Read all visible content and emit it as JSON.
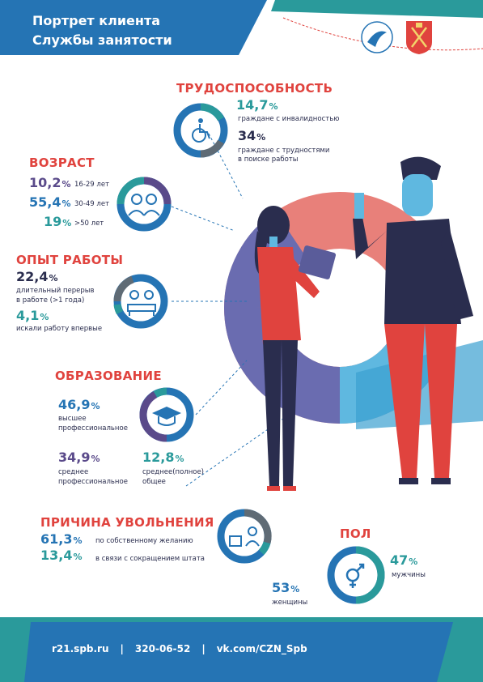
{
  "header": {
    "title_line1": "Портрет клиента",
    "title_line2": "Службы занятости"
  },
  "colors": {
    "blue": "#2574b4",
    "teal": "#2a9a9b",
    "red": "#e0433e",
    "navy": "#2a2d4e",
    "purple": "#5a4a8a",
    "gray": "#5f6b75"
  },
  "trud": {
    "title": "ТРУДОСПОСОБНОСТЬ",
    "items": [
      {
        "value": "14,7",
        "unit": "%",
        "label": "граждане с инвалидностью"
      },
      {
        "value": "34",
        "unit": "%",
        "label_line1": "граждане с трудностями",
        "label_line2": "в поиске работы"
      }
    ]
  },
  "vozrast": {
    "title": "ВОЗРАСТ",
    "items": [
      {
        "value": "10,2",
        "unit": "%",
        "label": "16-29 лет"
      },
      {
        "value": "55,4",
        "unit": "%",
        "label": "30-49 лет"
      },
      {
        "value": "19",
        "unit": "%",
        "label": ">50 лет"
      }
    ]
  },
  "opyt": {
    "title": "ОПЫТ РАБОТЫ",
    "items": [
      {
        "value": "22,4",
        "unit": "%",
        "label_line1": "длительный перерыв",
        "label_line2": "в работе (>1 года)"
      },
      {
        "value": "4,1",
        "unit": "%",
        "label": "искали работу впервые"
      }
    ]
  },
  "obraz": {
    "title": "ОБРАЗОВАНИЕ",
    "items": [
      {
        "value": "46,9",
        "unit": "%",
        "label_line1": "высшее",
        "label_line2": "профессиональное"
      },
      {
        "value": "34,9",
        "unit": "%",
        "label_line1": "среднее",
        "label_line2": "профессиональное"
      },
      {
        "value": "12,8",
        "unit": "%",
        "label_line1": "среднее(полное)",
        "label_line2": "общее"
      }
    ]
  },
  "prichina": {
    "title": "ПРИЧИНА УВОЛЬНЕНИЯ",
    "items": [
      {
        "value": "61,3",
        "unit": "%",
        "label": "по собственному желанию"
      },
      {
        "value": "13,4",
        "unit": "%",
        "label": "в связи с сокращением штата"
      }
    ]
  },
  "pol": {
    "title": "ПОЛ",
    "items": [
      {
        "value": "47",
        "unit": "%",
        "label": "мужчины"
      },
      {
        "value": "53",
        "unit": "%",
        "label": "женщины"
      }
    ]
  },
  "footer": {
    "site": "r21.spb.ru",
    "sep": "|",
    "phone": "320-06-52",
    "vk": "vk.com/CZN_Spb"
  },
  "icons": [
    "employment-service-logo",
    "spb-coat-of-arms-icon",
    "wheelchair-icon",
    "people-icon",
    "workers-icon",
    "graduation-cap-icon",
    "box-person-icon",
    "gender-icon"
  ]
}
